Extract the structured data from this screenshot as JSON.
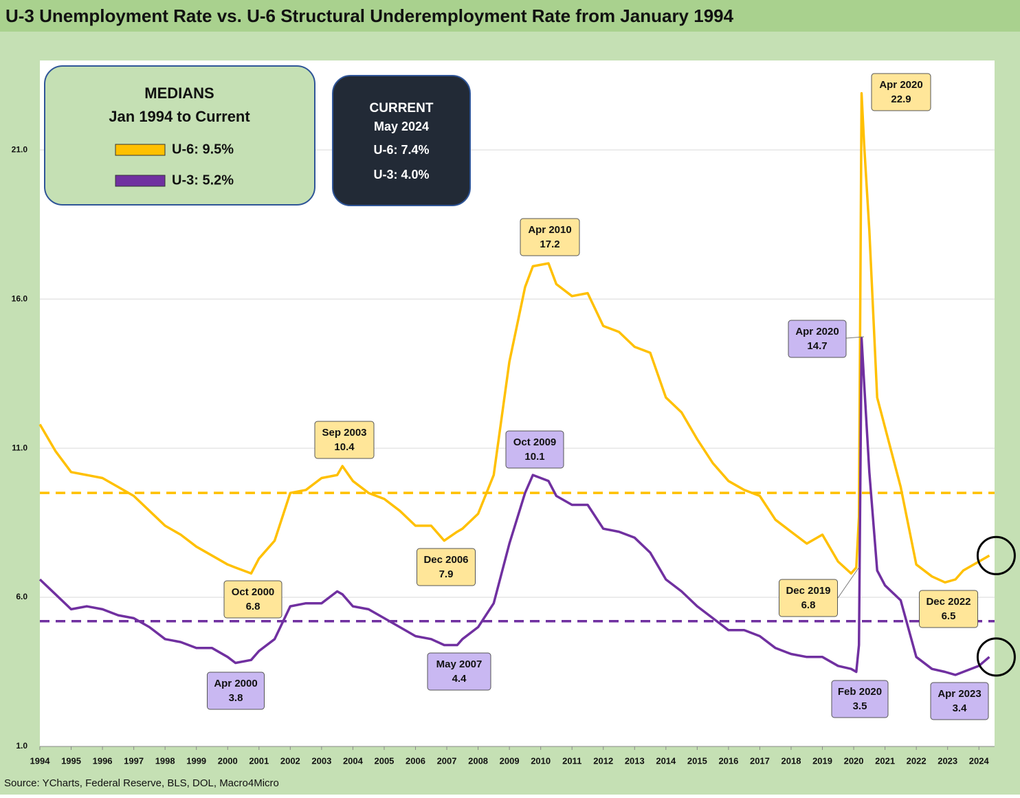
{
  "chart_data": {
    "type": "line",
    "title": "U-3 Unemployment Rate vs. U-6 Structural Underemployment Rate from January 1994",
    "source": "Source: YCharts, Federal Reserve, BLS, DOL, Macro4Micro",
    "x": [
      1994.0,
      1994.5,
      1995.0,
      1995.5,
      1996.0,
      1996.5,
      1997.0,
      1997.5,
      1998.0,
      1998.5,
      1999.0,
      1999.5,
      2000.0,
      2000.25,
      2000.75,
      2001.0,
      2001.5,
      2002.0,
      2002.5,
      2003.0,
      2003.5,
      2003.667,
      2004.0,
      2004.5,
      2005.0,
      2005.5,
      2006.0,
      2006.5,
      2006.917,
      2007.333,
      2007.5,
      2008.0,
      2008.5,
      2009.0,
      2009.5,
      2009.75,
      2010.25,
      2010.5,
      2011.0,
      2011.5,
      2012.0,
      2012.5,
      2013.0,
      2013.5,
      2014.0,
      2014.5,
      2015.0,
      2015.5,
      2016.0,
      2016.5,
      2017.0,
      2017.5,
      2018.0,
      2018.5,
      2019.0,
      2019.5,
      2019.917,
      2020.083,
      2020.167,
      2020.25,
      2020.333,
      2020.5,
      2020.75,
      2021.0,
      2021.5,
      2022.0,
      2022.5,
      2022.917,
      2023.25,
      2023.5,
      2024.0,
      2024.333
    ],
    "series": [
      {
        "name": "U-6",
        "color": "#ffc000",
        "values": [
          11.8,
          10.9,
          10.2,
          10.1,
          10.0,
          9.7,
          9.4,
          8.9,
          8.4,
          8.1,
          7.7,
          7.4,
          7.1,
          7.0,
          6.8,
          7.3,
          7.9,
          9.5,
          9.6,
          10.0,
          10.1,
          10.4,
          9.9,
          9.5,
          9.3,
          8.9,
          8.4,
          8.4,
          7.9,
          8.2,
          8.3,
          8.8,
          10.1,
          13.9,
          16.4,
          17.1,
          17.2,
          16.5,
          16.1,
          16.2,
          15.1,
          14.9,
          14.4,
          14.2,
          12.7,
          12.2,
          11.3,
          10.5,
          9.9,
          9.6,
          9.4,
          8.6,
          8.2,
          7.8,
          8.1,
          7.2,
          6.8,
          7.0,
          8.7,
          22.9,
          21.2,
          18.3,
          12.7,
          11.7,
          9.7,
          7.1,
          6.7,
          6.5,
          6.6,
          6.9,
          7.2,
          7.4
        ]
      },
      {
        "name": "U-3",
        "color": "#7030a0",
        "values": [
          6.6,
          6.1,
          5.6,
          5.7,
          5.6,
          5.4,
          5.3,
          5.0,
          4.6,
          4.5,
          4.3,
          4.3,
          4.0,
          3.8,
          3.9,
          4.2,
          4.6,
          5.7,
          5.8,
          5.8,
          6.2,
          6.1,
          5.7,
          5.6,
          5.3,
          5.0,
          4.7,
          4.6,
          4.4,
          4.4,
          4.6,
          5.0,
          5.8,
          7.8,
          9.5,
          10.1,
          9.9,
          9.4,
          9.1,
          9.1,
          8.3,
          8.2,
          8.0,
          7.5,
          6.6,
          6.2,
          5.7,
          5.3,
          4.9,
          4.9,
          4.7,
          4.3,
          4.1,
          4.0,
          4.0,
          3.7,
          3.6,
          3.5,
          4.4,
          14.7,
          13.2,
          10.2,
          6.9,
          6.4,
          5.9,
          4.0,
          3.6,
          3.5,
          3.4,
          3.5,
          3.7,
          4.0
        ]
      }
    ],
    "xlim": [
      1994,
      2024.5
    ],
    "xticks": [
      1994,
      1995,
      1996,
      1997,
      1998,
      1999,
      2000,
      2001,
      2002,
      2003,
      2004,
      2005,
      2006,
      2007,
      2008,
      2009,
      2010,
      2011,
      2012,
      2013,
      2014,
      2015,
      2016,
      2017,
      2018,
      2019,
      2020,
      2021,
      2022,
      2023,
      2024
    ],
    "ylim": [
      1,
      24
    ],
    "yticks": [
      {
        "value": 1,
        "label": "1.0"
      },
      {
        "value": 6,
        "label": "6.0"
      },
      {
        "value": 11,
        "label": "11.0"
      },
      {
        "value": 16,
        "label": "16.0"
      },
      {
        "value": 21,
        "label": "21.0"
      }
    ],
    "grid": true,
    "medians": {
      "title": "MEDIANS",
      "subtitle": "Jan 1994 to Current",
      "items": [
        {
          "label": "U-6: 9.5%",
          "value": 9.5,
          "color": "#ffc000"
        },
        {
          "label": "U-3: 5.2%",
          "value": 5.2,
          "color": "#7030a0"
        }
      ]
    },
    "current": {
      "title": "CURRENT",
      "subtitle": "May 2024",
      "items": [
        "U-6: 7.4%",
        "U-3: 4.0%"
      ]
    },
    "annotations": [
      {
        "text": [
          "Apr 2020",
          "22.9"
        ],
        "color": "#ffe699"
      },
      {
        "text": [
          "Apr 2010",
          "17.2"
        ],
        "color": "#ffe699"
      },
      {
        "text": [
          "Sep 2003",
          "10.4"
        ],
        "color": "#ffe699"
      },
      {
        "text": [
          "Oct 2009",
          "10.1"
        ],
        "color": "#c9b8f2"
      },
      {
        "text": [
          "Apr 2020",
          "14.7"
        ],
        "color": "#c9b8f2"
      },
      {
        "text": [
          "Dec 2006",
          "7.9"
        ],
        "color": "#ffe699"
      },
      {
        "text": [
          "Oct 2000",
          "6.8"
        ],
        "color": "#ffe699"
      },
      {
        "text": [
          "Dec 2019",
          "6.8"
        ],
        "color": "#ffe699"
      },
      {
        "text": [
          "Dec 2022",
          "6.5"
        ],
        "color": "#ffe699"
      },
      {
        "text": [
          "May 2007",
          "4.4"
        ],
        "color": "#c9b8f2"
      },
      {
        "text": [
          "Apr 2000",
          "3.8"
        ],
        "color": "#c9b8f2"
      },
      {
        "text": [
          "Feb 2020",
          "3.5"
        ],
        "color": "#c9b8f2"
      },
      {
        "text": [
          "Apr 2023",
          "3.4"
        ],
        "color": "#c9b8f2"
      }
    ]
  }
}
